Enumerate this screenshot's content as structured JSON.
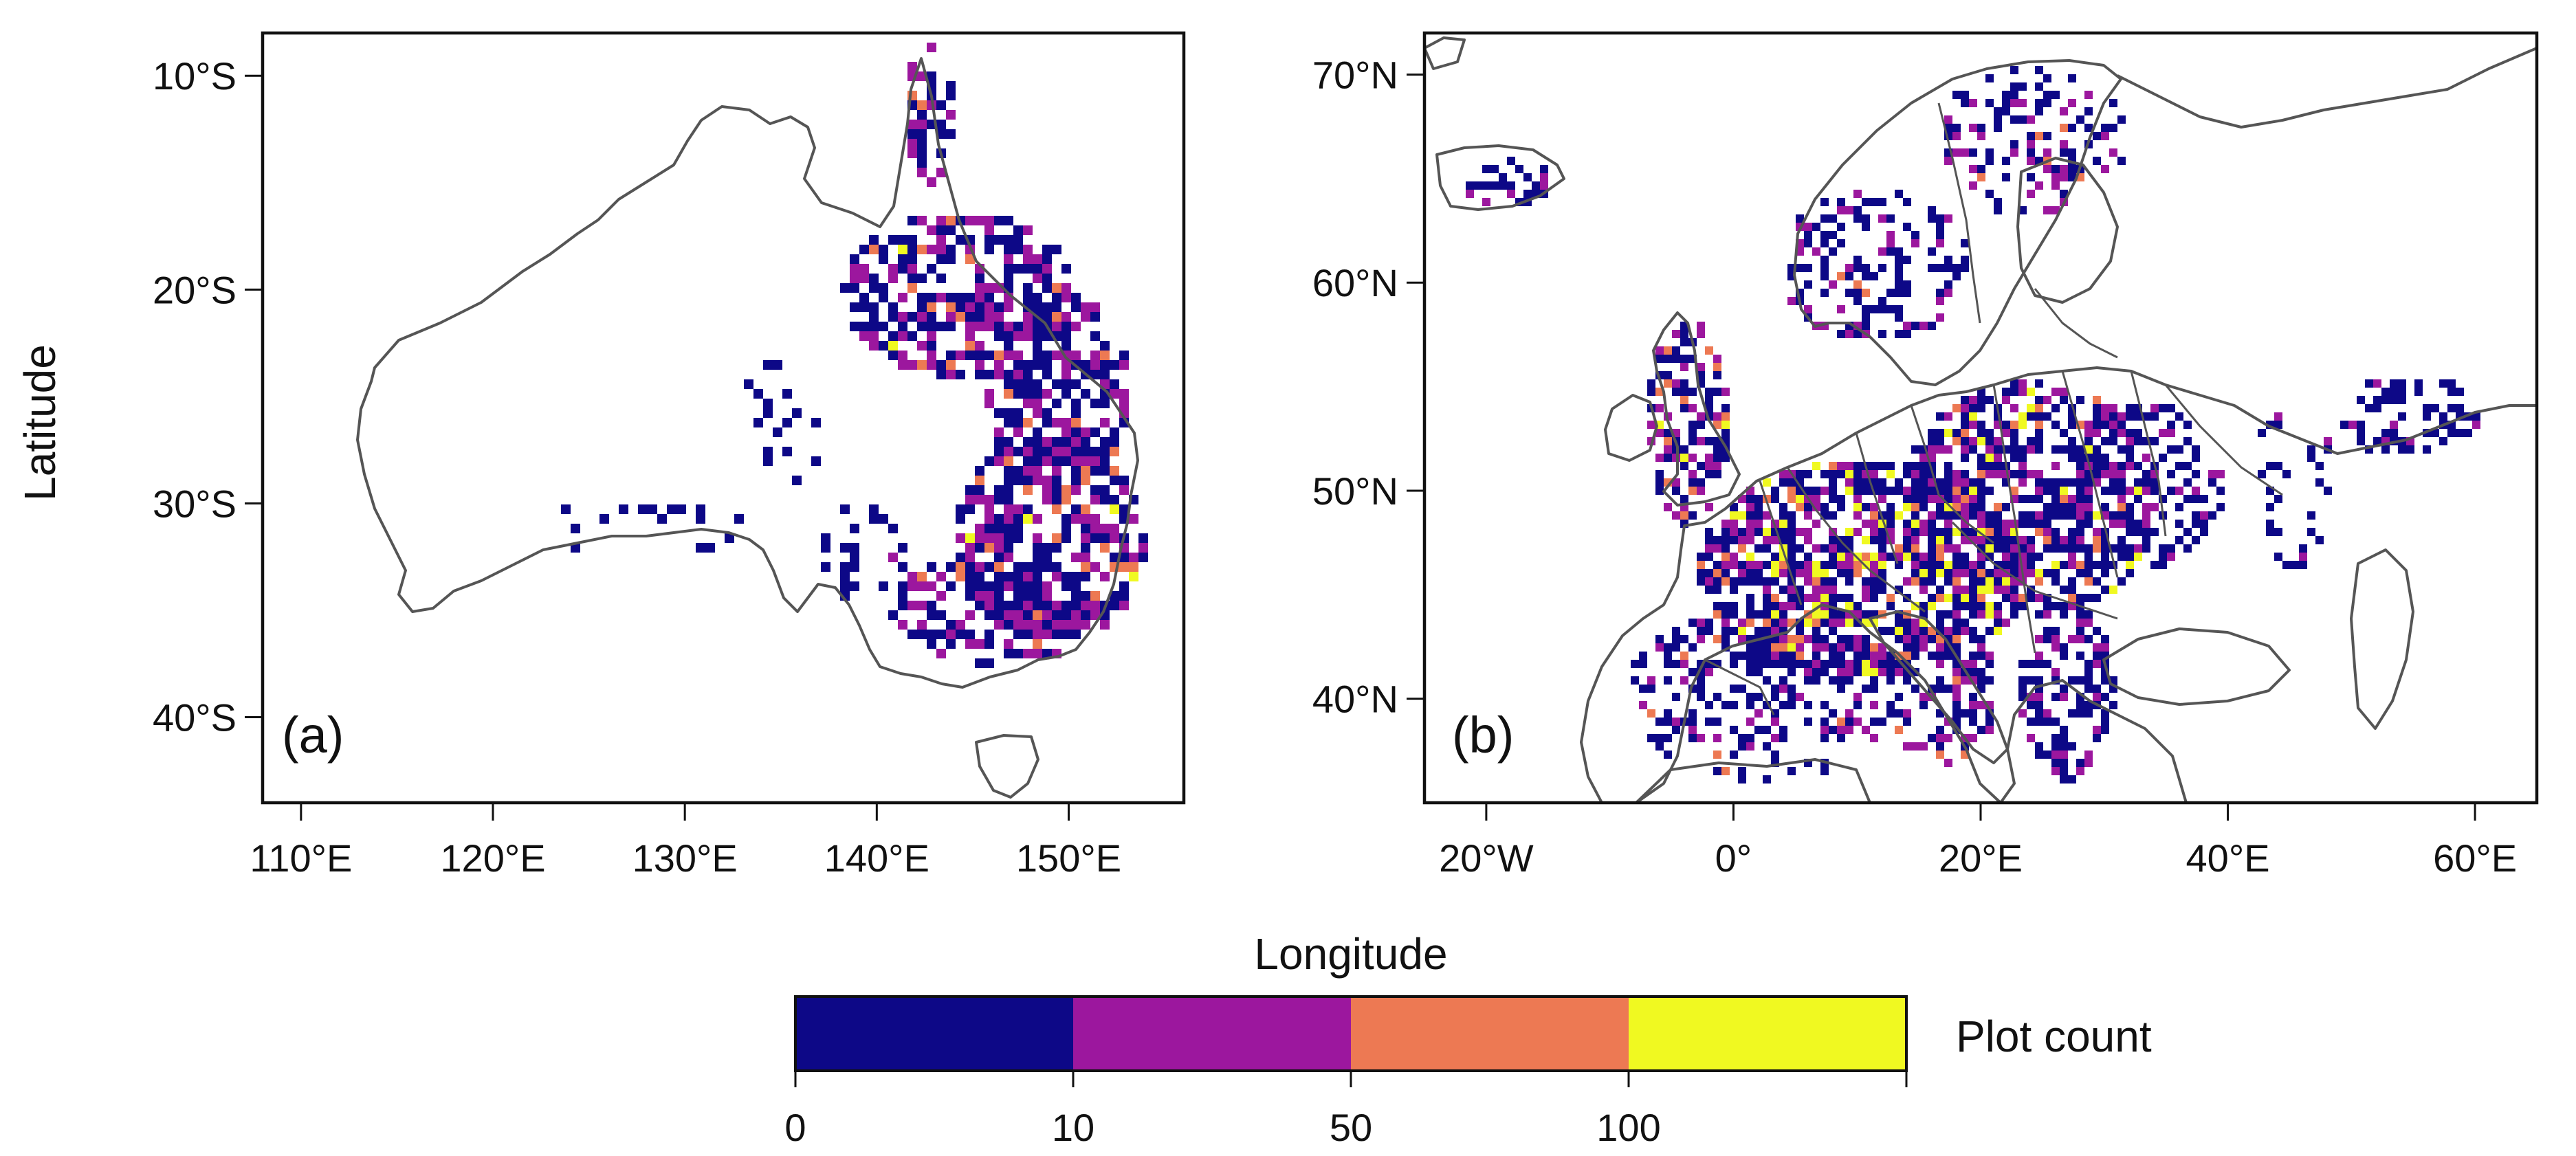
{
  "figure": {
    "y_axis_label": "Latitude",
    "x_axis_label": "Longitude"
  },
  "colors": {
    "bin_0_10": "#0d0887",
    "bin_10_50": "#9c179e",
    "bin_50_100": "#ed7953",
    "bin_100_plus": "#f0f921",
    "coastline": "#555555",
    "frame": "#111111"
  },
  "panels": [
    {
      "label": "(a)",
      "region": "Australia",
      "lon_range": [
        108,
        156
      ],
      "lat_range": [
        -44,
        -8
      ],
      "x_ticks": [
        {
          "value": 110,
          "label": "110°E"
        },
        {
          "value": 120,
          "label": "120°E"
        },
        {
          "value": 130,
          "label": "130°E"
        },
        {
          "value": 140,
          "label": "140°E"
        },
        {
          "value": 150,
          "label": "150°E"
        }
      ],
      "y_ticks": [
        {
          "value": -10,
          "label": "10°S"
        },
        {
          "value": -20,
          "label": "20°S"
        },
        {
          "value": -30,
          "label": "30°S"
        },
        {
          "value": -40,
          "label": "40°S"
        }
      ]
    },
    {
      "label": "(b)",
      "region": "Europe",
      "lon_range": [
        -25,
        65
      ],
      "lat_range": [
        35,
        72
      ],
      "x_ticks": [
        {
          "value": -20,
          "label": "20°W"
        },
        {
          "value": 0,
          "label": "0°"
        },
        {
          "value": 20,
          "label": "20°E"
        },
        {
          "value": 40,
          "label": "40°E"
        },
        {
          "value": 60,
          "label": "60°E"
        }
      ],
      "y_ticks": [
        {
          "value": 40,
          "label": "40°N"
        },
        {
          "value": 50,
          "label": "50°N"
        },
        {
          "value": 60,
          "label": "60°N"
        },
        {
          "value": 70,
          "label": "70°N"
        }
      ]
    }
  ],
  "legend": {
    "title": "Plot count",
    "ticks": [
      "0",
      "10",
      "50",
      "100"
    ],
    "bins": [
      "0–10",
      "10–50",
      "50–100",
      ">100"
    ]
  }
}
